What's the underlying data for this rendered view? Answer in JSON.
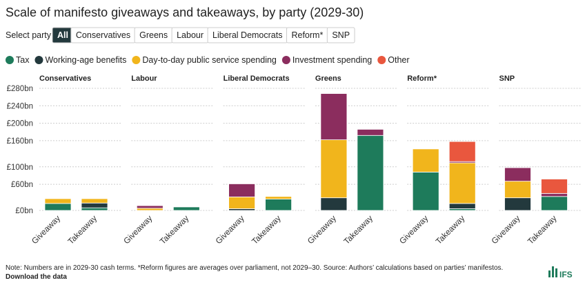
{
  "header": {
    "title": "Scale of manifesto giveaways and takeaways, by party (2029-30)",
    "filter_label": "Select party",
    "filters": [
      "All",
      "Conservatives",
      "Greens",
      "Labour",
      "Liberal Democrats",
      "Reform*",
      "SNP"
    ]
  },
  "chart_data": [
    {
      "type": "bar",
      "stacked": true,
      "title": "Conservatives",
      "categories": [
        "Giveaway",
        "Takeaway"
      ],
      "ylim": [
        0,
        280
      ],
      "yticks": [
        {
          "value": 0,
          "label": "£0bn"
        },
        {
          "value": 60,
          "label": "£60bn"
        },
        {
          "value": 100,
          "label": "£100bn"
        },
        {
          "value": 160,
          "label": "£160bn"
        },
        {
          "value": 200,
          "label": "£200bn"
        },
        {
          "value": 240,
          "label": "£240bn"
        },
        {
          "value": 280,
          "label": "£280bn"
        }
      ],
      "series": [
        {
          "name": "Tax",
          "color": "#1e7b5b",
          "values": [
            16,
            6
          ]
        },
        {
          "name": "Working-age benefits",
          "color": "#23393d",
          "values": [
            0,
            11
          ]
        },
        {
          "name": "Day-to-day public service spending",
          "color": "#f1b51c",
          "values": [
            11,
            10
          ]
        },
        {
          "name": "Investment spending",
          "color": "#8b2d5e",
          "values": [
            0,
            0
          ]
        },
        {
          "name": "Other",
          "color": "#e9573e",
          "values": [
            0,
            0
          ]
        }
      ]
    },
    {
      "type": "bar",
      "stacked": true,
      "title": "Labour",
      "categories": [
        "Giveaway",
        "Takeaway"
      ],
      "ylim": [
        0,
        280
      ],
      "series": [
        {
          "name": "Tax",
          "color": "#1e7b5b",
          "values": [
            0,
            8
          ]
        },
        {
          "name": "Working-age benefits",
          "color": "#23393d",
          "values": [
            0,
            0
          ]
        },
        {
          "name": "Day-to-day public service spending",
          "color": "#f1b51c",
          "values": [
            5,
            0
          ]
        },
        {
          "name": "Investment spending",
          "color": "#8b2d5e",
          "values": [
            6,
            0
          ]
        },
        {
          "name": "Other",
          "color": "#e9573e",
          "values": [
            0,
            0
          ]
        }
      ]
    },
    {
      "type": "bar",
      "stacked": true,
      "title": "Liberal Democrats",
      "categories": [
        "Giveaway",
        "Takeaway"
      ],
      "ylim": [
        0,
        280
      ],
      "series": [
        {
          "name": "Tax",
          "color": "#1e7b5b",
          "values": [
            0,
            26
          ]
        },
        {
          "name": "Working-age benefits",
          "color": "#23393d",
          "values": [
            4,
            0
          ]
        },
        {
          "name": "Day-to-day public service spending",
          "color": "#f1b51c",
          "values": [
            27,
            6
          ]
        },
        {
          "name": "Investment spending",
          "color": "#8b2d5e",
          "values": [
            30,
            0
          ]
        },
        {
          "name": "Other",
          "color": "#e9573e",
          "values": [
            0,
            0
          ]
        }
      ]
    },
    {
      "type": "bar",
      "stacked": true,
      "title": "Greens",
      "categories": [
        "Giveaway",
        "Takeaway"
      ],
      "ylim": [
        0,
        280
      ],
      "series": [
        {
          "name": "Tax",
          "color": "#1e7b5b",
          "values": [
            0,
            172
          ]
        },
        {
          "name": "Working-age benefits",
          "color": "#23393d",
          "values": [
            29,
            0
          ]
        },
        {
          "name": "Day-to-day public service spending",
          "color": "#f1b51c",
          "values": [
            133,
            0
          ]
        },
        {
          "name": "Investment spending",
          "color": "#8b2d5e",
          "values": [
            106,
            14
          ]
        },
        {
          "name": "Other",
          "color": "#e9573e",
          "values": [
            0,
            0
          ]
        }
      ]
    },
    {
      "type": "bar",
      "stacked": true,
      "title": "Reform*",
      "categories": [
        "Giveaway",
        "Takeaway"
      ],
      "ylim": [
        0,
        280
      ],
      "series": [
        {
          "name": "Tax",
          "color": "#1e7b5b",
          "values": [
            88,
            4
          ]
        },
        {
          "name": "Working-age benefits",
          "color": "#23393d",
          "values": [
            0,
            12
          ]
        },
        {
          "name": "Day-to-day public service spending",
          "color": "#f1b51c",
          "values": [
            53,
            93
          ]
        },
        {
          "name": "Investment spending",
          "color": "#8b2d5e",
          "values": [
            0,
            3
          ]
        },
        {
          "name": "Other",
          "color": "#e9573e",
          "values": [
            0,
            46
          ]
        }
      ]
    },
    {
      "type": "bar",
      "stacked": true,
      "title": "SNP",
      "categories": [
        "Giveaway",
        "Takeaway"
      ],
      "ylim": [
        0,
        280
      ],
      "series": [
        {
          "name": "Tax",
          "color": "#1e7b5b",
          "values": [
            0,
            32
          ]
        },
        {
          "name": "Working-age benefits",
          "color": "#23393d",
          "values": [
            29,
            0
          ]
        },
        {
          "name": "Day-to-day public service spending",
          "color": "#f1b51c",
          "values": [
            38,
            0
          ]
        },
        {
          "name": "Investment spending",
          "color": "#8b2d5e",
          "values": [
            31,
            7
          ]
        },
        {
          "name": "Other",
          "color": "#e9573e",
          "values": [
            0,
            33
          ]
        }
      ]
    }
  ],
  "footer": {
    "note": "Note: Numbers are in 2029-30 cash terms. *Reform figures are averages over parliament, not 2029–30. Source: Authors’ calculations based on parties’ manifestos.",
    "download": "Download the data",
    "logo": "IFS"
  }
}
